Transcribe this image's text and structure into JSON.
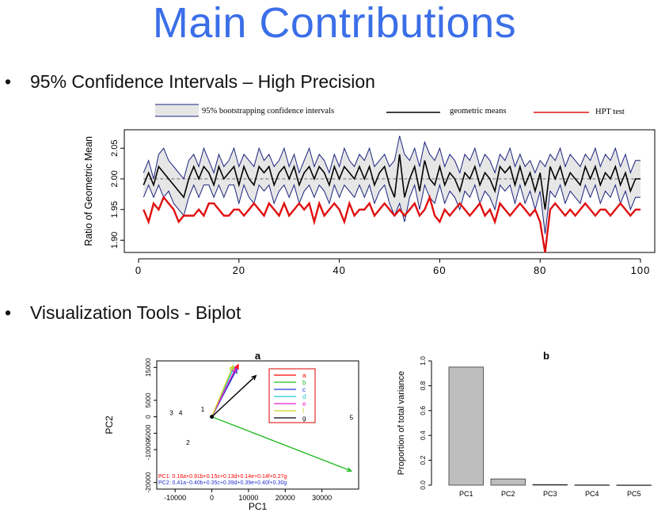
{
  "slide": {
    "title": "Main Contributions",
    "bullet1": "95% Confidence Intervals – High Precision",
    "bullet2": "Visualization Tools - Biplot",
    "bullet_glyph": "•"
  },
  "chart_data": [
    {
      "type": "line",
      "title": "",
      "xlabel": "",
      "ylabel": "Ratio of Geometric Mean",
      "xlim": [
        0,
        100
      ],
      "ylim": [
        1.88,
        2.08
      ],
      "xticks": [
        0,
        20,
        40,
        60,
        80,
        100
      ],
      "yticks": [
        1.9,
        1.95,
        2.0,
        2.05
      ],
      "ytick_labels": [
        "1.90",
        "1.95",
        "2.00",
        "2.05"
      ],
      "reference_line": 2.0,
      "legend": [
        {
          "label": "95% bootstrapping confidence intervals",
          "color": "#1a237e",
          "fill": "#e6e6e6"
        },
        {
          "label": "geometric means",
          "color": "#000000"
        },
        {
          "label": "HPT test",
          "color": "#e01010"
        }
      ],
      "x": [
        1,
        2,
        3,
        4,
        5,
        6,
        7,
        8,
        9,
        10,
        11,
        12,
        13,
        14,
        15,
        16,
        17,
        18,
        19,
        20,
        21,
        22,
        23,
        24,
        25,
        26,
        27,
        28,
        29,
        30,
        31,
        32,
        33,
        34,
        35,
        36,
        37,
        38,
        39,
        40,
        41,
        42,
        43,
        44,
        45,
        46,
        47,
        48,
        49,
        50,
        51,
        52,
        53,
        54,
        55,
        56,
        57,
        58,
        59,
        60,
        61,
        62,
        63,
        64,
        65,
        66,
        67,
        68,
        69,
        70,
        71,
        72,
        73,
        74,
        75,
        76,
        77,
        78,
        79,
        80,
        81,
        82,
        83,
        84,
        85,
        86,
        87,
        88,
        89,
        90,
        91,
        92,
        93,
        94,
        95,
        96,
        97,
        98,
        99,
        100
      ],
      "series": [
        {
          "name": "upper",
          "values": [
            2.01,
            2.03,
            2.0,
            2.04,
            2.05,
            2.03,
            2.02,
            2.01,
            2.0,
            2.03,
            2.04,
            2.02,
            2.05,
            2.03,
            2.01,
            2.04,
            2.02,
            2.03,
            2.05,
            2.02,
            2.04,
            2.03,
            2.02,
            2.05,
            2.03,
            2.04,
            2.02,
            2.03,
            2.05,
            2.02,
            2.04,
            2.01,
            2.03,
            2.05,
            2.02,
            2.04,
            2.03,
            2.01,
            2.04,
            2.02,
            2.05,
            2.03,
            2.02,
            2.04,
            2.03,
            2.05,
            2.02,
            2.03,
            2.04,
            2.02,
            2.03,
            2.07,
            2.04,
            2.03,
            2.05,
            2.02,
            2.06,
            2.04,
            2.03,
            2.05,
            2.02,
            2.04,
            2.03,
            2.01,
            2.04,
            2.03,
            2.05,
            2.02,
            2.04,
            2.03,
            2.01,
            2.04,
            2.03,
            2.05,
            2.02,
            2.04,
            2.02,
            2.03,
            2.01,
            2.03,
            2.02,
            2.04,
            2.03,
            2.05,
            2.02,
            2.04,
            2.03,
            2.02,
            2.04,
            2.03,
            2.05,
            2.02,
            2.04,
            2.03,
            2.05,
            2.02,
            2.04,
            2.01,
            2.03,
            2.03
          ]
        },
        {
          "name": "mean",
          "values": [
            1.99,
            2.01,
            1.99,
            2.02,
            2.01,
            2.0,
            1.99,
            1.98,
            1.97,
            2.0,
            2.02,
            2.0,
            2.02,
            2.01,
            1.99,
            2.02,
            2.0,
            2.01,
            2.02,
            1.99,
            2.02,
            2.0,
            1.99,
            2.02,
            2.01,
            2.02,
            1.99,
            2.01,
            2.02,
            2.0,
            2.02,
            1.99,
            2.01,
            2.02,
            2.0,
            2.02,
            2.01,
            1.99,
            2.02,
            2.0,
            2.02,
            2.01,
            2.0,
            2.02,
            2.0,
            2.02,
            1.99,
            2.01,
            2.02,
            1.99,
            1.97,
            2.04,
            1.97,
            2.0,
            2.02,
            1.98,
            2.03,
            2.0,
            1.99,
            2.02,
            1.99,
            2.01,
            2.0,
            1.98,
            2.01,
            2.0,
            2.02,
            1.99,
            2.01,
            2.0,
            1.98,
            2.02,
            2.01,
            2.02,
            1.99,
            2.02,
            1.99,
            2.01,
            1.98,
            2.01,
            1.95,
            2.02,
            2.0,
            2.02,
            1.99,
            2.01,
            2.0,
            1.99,
            2.02,
            2.0,
            2.02,
            1.99,
            2.01,
            2.0,
            2.02,
            1.99,
            2.01,
            1.98,
            2.0,
            2.0
          ]
        },
        {
          "name": "lower",
          "values": [
            1.97,
            1.99,
            1.97,
            1.99,
            1.97,
            1.98,
            1.96,
            1.95,
            1.94,
            1.97,
            1.99,
            1.97,
            1.99,
            1.99,
            1.97,
            1.99,
            1.97,
            1.99,
            1.99,
            1.96,
            1.99,
            1.97,
            1.96,
            1.99,
            1.98,
            1.99,
            1.96,
            1.98,
            1.99,
            1.97,
            1.99,
            1.96,
            1.98,
            1.99,
            1.97,
            1.99,
            1.98,
            1.96,
            1.99,
            1.97,
            1.99,
            1.98,
            1.97,
            1.99,
            1.97,
            1.99,
            1.96,
            1.98,
            1.99,
            1.96,
            1.94,
            1.96,
            1.93,
            1.97,
            1.99,
            1.95,
            1.99,
            1.97,
            1.96,
            1.99,
            1.96,
            1.98,
            1.97,
            1.95,
            1.98,
            1.97,
            1.99,
            1.96,
            1.98,
            1.97,
            1.95,
            1.99,
            1.98,
            1.99,
            1.96,
            1.99,
            1.96,
            1.98,
            1.95,
            1.98,
            1.91,
            1.98,
            1.97,
            1.99,
            1.96,
            1.98,
            1.97,
            1.96,
            1.99,
            1.97,
            1.99,
            1.96,
            1.98,
            1.97,
            1.99,
            1.96,
            1.98,
            1.95,
            1.97,
            1.97
          ]
        },
        {
          "name": "HPT",
          "values": [
            1.95,
            1.93,
            1.96,
            1.95,
            1.97,
            1.96,
            1.95,
            1.93,
            1.94,
            1.94,
            1.94,
            1.95,
            1.94,
            1.96,
            1.96,
            1.95,
            1.94,
            1.94,
            1.95,
            1.95,
            1.94,
            1.95,
            1.96,
            1.95,
            1.94,
            1.96,
            1.95,
            1.94,
            1.96,
            1.94,
            1.95,
            1.96,
            1.95,
            1.96,
            1.93,
            1.96,
            1.94,
            1.95,
            1.96,
            1.95,
            1.93,
            1.96,
            1.94,
            1.95,
            1.95,
            1.96,
            1.94,
            1.95,
            1.96,
            1.95,
            1.94,
            1.95,
            1.94,
            1.95,
            1.96,
            1.94,
            1.95,
            1.97,
            1.94,
            1.93,
            1.95,
            1.94,
            1.95,
            1.96,
            1.95,
            1.94,
            1.95,
            1.96,
            1.94,
            1.95,
            1.93,
            1.96,
            1.95,
            1.94,
            1.95,
            1.96,
            1.95,
            1.94,
            1.95,
            1.93,
            1.88,
            1.95,
            1.96,
            1.95,
            1.94,
            1.95,
            1.94,
            1.95,
            1.96,
            1.95,
            1.94,
            1.95,
            1.95,
            1.94,
            1.95,
            1.96,
            1.95,
            1.94,
            1.95,
            1.95
          ]
        }
      ],
      "colors": {
        "band_edge": "#1a237e",
        "band_fill": "#e6e6e6",
        "mean": "#000000",
        "hpt": "#e01010",
        "ref": "#666666"
      }
    },
    {
      "type": "scatter",
      "title": "a",
      "xlabel": "PC1",
      "ylabel": "PC2",
      "xlim": [
        -15000,
        40000
      ],
      "ylim": [
        -22000,
        17000
      ],
      "xticks": [
        -10000,
        0,
        10000,
        20000,
        30000
      ],
      "yticks": [
        -20000,
        -10000,
        -5000,
        0,
        5000,
        15000
      ],
      "points": [
        {
          "label": "1",
          "x": -2500,
          "y": 2500
        },
        {
          "label": "2",
          "x": -6500,
          "y": -7500
        },
        {
          "label": "3",
          "x": -11000,
          "y": 1500
        },
        {
          "label": "4",
          "x": -8500,
          "y": 1500
        },
        {
          "label": "5",
          "x": 38000,
          "y": 0
        }
      ],
      "loadings": [
        {
          "name": "a",
          "color": "#ff0000",
          "x": 7200,
          "y": 15800
        },
        {
          "name": "b",
          "color": "#22bb22",
          "x": 38000,
          "y": -16500
        },
        {
          "name": "c",
          "color": "#1f3bd6",
          "x": 6800,
          "y": 14500
        },
        {
          "name": "d",
          "color": "#20c8d0",
          "x": 6000,
          "y": 15000
        },
        {
          "name": "e",
          "color": "#e020c8",
          "x": 6500,
          "y": 14800
        },
        {
          "name": "f",
          "color": "#d0d020",
          "x": 5800,
          "y": 15500
        },
        {
          "name": "g",
          "color": "#000000",
          "x": 12000,
          "y": 12500
        }
      ],
      "pc_lines": [
        {
          "text": "PC1: 0.16a+0.91b+0.15c+0.13d+0.14e+0.14f+0.27g",
          "color": "#ff0000"
        },
        {
          "text": "PC2: 0.41a−0.40b+0.35c+0.39d+0.39e+0.40f+0.30g",
          "color": "#2233cc"
        }
      ]
    },
    {
      "type": "bar",
      "title": "b",
      "xlabel": "",
      "ylabel": "Proportion of total variance",
      "categories": [
        "PC1",
        "PC2",
        "PC3",
        "PC4",
        "PC5"
      ],
      "values": [
        0.95,
        0.05,
        0.005,
        0.002,
        0.001
      ],
      "ylim": [
        0,
        1.0
      ],
      "yticks": [
        0.0,
        0.2,
        0.4,
        0.6,
        0.8,
        1.0
      ],
      "ytick_labels": [
        "0.0",
        "0.2",
        "0.4",
        "0.6",
        "0.8",
        "1.0"
      ],
      "bar_color": "#bebebe"
    }
  ]
}
